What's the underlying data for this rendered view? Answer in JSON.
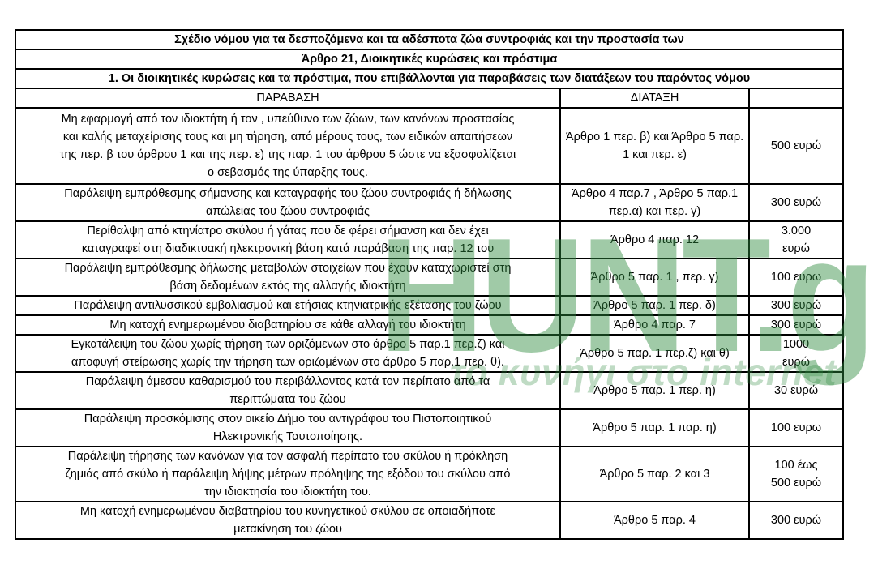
{
  "title_rows": [
    "Σχέδιο νόμου για τα δεσποζόμενα και τα αδέσποτα ζώα συντροφιάς και την προστασία των",
    "Άρθρο 21, Διοικητικές κυρώσεις και πρόστιμα",
    "1.  Οι διοικητικές κυρώσεις και τα πρόστιμα, που επιβάλλονται για παραβάσεις των διατάξεων του παρόντος νόμου"
  ],
  "headers": [
    "ΠΑΡΑΒΑΣΗ",
    "ΔΙΑΤΑΞΗ",
    ""
  ],
  "rows": [
    {
      "violation": [
        "Μη εφαρμογή από τον ιδιοκτήτη ή τον , υπεύθυνο των ζώων, των κανόνων προστασίας",
        "και καλής μεταχείρισης τους και μη τήρηση, από μέρους τους, των ειδικών απαιτήσεων",
        "της περ. β του άρθρου 1 και της περ. ε) της παρ. 1 του άρθρου 5 ώστε να εξασφαλίζεται",
        "ο σεβασμός  της ύπαρξης τους."
      ],
      "provision": [
        "Άρθρο 1 περ. β) και Άρθρο 5 παρ.",
        "1 και περ. ε)"
      ],
      "fine": [
        "500 ευρώ"
      ]
    },
    {
      "violation": [
        "Παράλειψη εμπρόθεσμης σήμανσης και καταγραφής του ζώου συντροφιάς ή δήλωσης",
        "απώλειας του ζώου συντροφιάς"
      ],
      "provision": [
        "Άρθρο 4 παρ.7 , Άρθρο 5 παρ.1",
        "περ.α) και περ. γ)"
      ],
      "fine": [
        "300 ευρώ"
      ]
    },
    {
      "violation": [
        "Περίθαλψη από κτηνίατρο σκύλου ή γάτας  που δε φέρει σήμανση και δεν έχει",
        "καταγραφεί στη διαδικτυακή ηλεκτρονική βάση κατά παράβαση της παρ. 12 του"
      ],
      "provision": [
        "Άρθρο 4 παρ. 12"
      ],
      "fine": [
        "3.000",
        "ευρώ"
      ]
    },
    {
      "violation": [
        "Παράλειψη εμπρόθεσμης δήλωσης μεταβολών στοιχείων που έχουν καταχωριστεί στη",
        "βάση δεδομένων εκτός της αλλαγής ιδιοκτήτη"
      ],
      "provision": [
        "Άρθρο 5 παρ. 1 , περ. γ)"
      ],
      "fine": [
        "100 ευρω"
      ]
    },
    {
      "violation": [
        "Παράλειψη αντιλυσσικού εμβολιασμού και ετήσιας κτηνιατρικής εξέτασης του ζώου"
      ],
      "provision": [
        "Άρθρο 5 παρ. 1 περ. δ)"
      ],
      "fine": [
        "300 ευρώ"
      ]
    },
    {
      "violation": [
        "Μη κατοχή ενημερωμένου διαβατηρίου σε κάθε αλλαγή του ιδιοκτήτη"
      ],
      "provision": [
        "Άρθρο 4 παρ. 7"
      ],
      "fine": [
        "300 ευρώ"
      ]
    },
    {
      "violation": [
        "Εγκατάλειψη του ζώου χωρίς τήρηση των οριζόμενων στο άρθρο 5 παρ.1 περ.ζ) και",
        "αποφυγή στείρωσης χωρίς την τήρηση των οριζομένων στο άρθρο 5 παρ.1 περ. θ)."
      ],
      "provision": [
        "Άρθρο 5 παρ. 1  περ.ζ) και θ)"
      ],
      "fine": [
        "1000",
        "ευρώ"
      ]
    },
    {
      "violation": [
        "Παράλειψη άμεσου καθαρισμού του περιβάλλοντος κατά τον περίπατο από τα",
        "περιττώματα του ζώου"
      ],
      "provision": [
        "Άρθρο 5 παρ. 1 περ. η)"
      ],
      "fine": [
        "30 ευρώ"
      ]
    },
    {
      "violation": [
        "Παράλειψη προσκόμισης στον οικείο Δήμο του αντιγράφου του Πιστοποιητικού",
        "Ηλεκτρονικής Ταυτοποίησης."
      ],
      "provision": [
        "Άρθρο 5 παρ. 1 παρ. η)"
      ],
      "fine": [
        "100 ευρω"
      ]
    },
    {
      "violation": [
        "Παράλειψη τήρησης των κανόνων για τον ασφαλή περίπατο του σκύλου ή  πρόκληση",
        "ζημιάς από σκύλο ή παράλειψη λήψης μέτρων πρόληψης της εξόδου του σκύλου από",
        "την ιδιοκτησία του ιδιοκτήτη του."
      ],
      "provision": [
        "Άρθρο 5 παρ. 2 και 3"
      ],
      "fine": [
        "100 έως",
        "500 ευρώ"
      ]
    },
    {
      "violation": [
        "Μη κατοχή ενημερωμένου διαβατηρίου του κυνηγετικού σκύλου σε οποιαδήποτε",
        "μετακίνηση του ζώου"
      ],
      "provision": [
        "Άρθρο 5 παρ. 4"
      ],
      "fine": [
        "300 ευρώ"
      ]
    }
  ],
  "watermark": {
    "logo": "HUNT.gr",
    "tagline": "το κυνήγι στο internet",
    "color": "#2e8b3e"
  }
}
